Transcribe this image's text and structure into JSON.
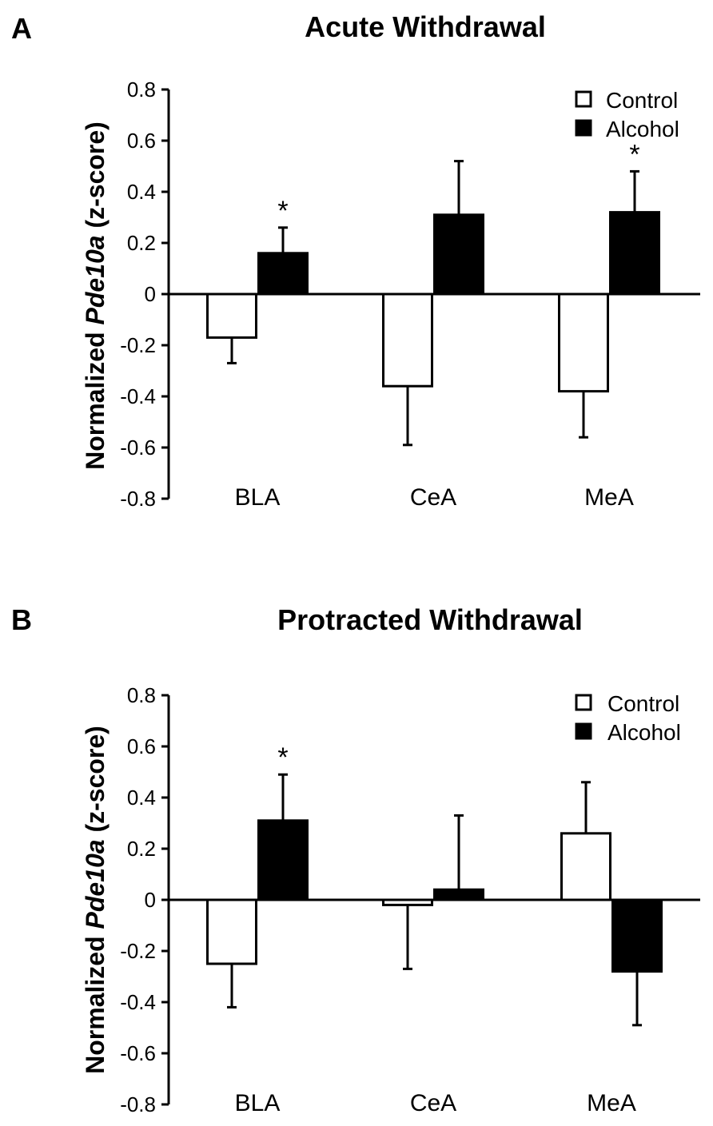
{
  "chart_data": [
    {
      "type": "bar",
      "panel_label": "A",
      "title": "Acute Withdrawal",
      "ylabel_prefix": "Normalized ",
      "ylabel_gene": "Pde10a",
      "ylabel_suffix": " (z-score)",
      "ylim": [
        -0.8,
        0.8
      ],
      "yticks": [
        "0.8",
        "0.6",
        "0.4",
        "0.2",
        "0",
        "-0.2",
        "-0.4",
        "-0.6",
        "-0.8"
      ],
      "ytick_values": [
        0.8,
        0.6,
        0.4,
        0.2,
        0,
        -0.2,
        -0.4,
        -0.6,
        -0.8
      ],
      "categories": [
        "BLA",
        "CeA",
        "MeA"
      ],
      "series": [
        {
          "name": "Control",
          "fill": "#ffffff",
          "values": [
            -0.17,
            -0.36,
            -0.38
          ],
          "errors": [
            0.1,
            0.23,
            0.18
          ]
        },
        {
          "name": "Alcohol",
          "fill": "#000000",
          "values": [
            0.16,
            0.31,
            0.32
          ],
          "errors": [
            0.1,
            0.21,
            0.16
          ]
        }
      ],
      "significance": [
        {
          "category": "BLA",
          "series": "Alcohol",
          "mark": "*"
        },
        {
          "category": "MeA",
          "series": "Alcohol",
          "mark": "*"
        }
      ],
      "legend_position": "top-right"
    },
    {
      "type": "bar",
      "panel_label": "B",
      "title": "Protracted Withdrawal",
      "ylabel_prefix": "Normalized ",
      "ylabel_gene": "Pde10a",
      "ylabel_suffix": " (z-score)",
      "ylim": [
        -0.8,
        0.8
      ],
      "yticks": [
        "0.8",
        "0.6",
        "0.4",
        "0.2",
        "0",
        "-0.2",
        "-0.4",
        "-0.6",
        "-0.8"
      ],
      "ytick_values": [
        0.8,
        0.6,
        0.4,
        0.2,
        0,
        -0.2,
        -0.4,
        -0.6,
        -0.8
      ],
      "categories": [
        "BLA",
        "CeA",
        "MeA"
      ],
      "series": [
        {
          "name": "Control",
          "fill": "#ffffff",
          "values": [
            -0.25,
            -0.02,
            0.26
          ],
          "errors": [
            0.17,
            0.25,
            0.2
          ]
        },
        {
          "name": "Alcohol",
          "fill": "#000000",
          "values": [
            0.31,
            0.04,
            -0.28
          ],
          "errors": [
            0.18,
            0.29,
            0.21
          ]
        }
      ],
      "significance": [
        {
          "category": "BLA",
          "series": "Alcohol",
          "mark": "*"
        }
      ],
      "legend_position": "top-right"
    }
  ]
}
